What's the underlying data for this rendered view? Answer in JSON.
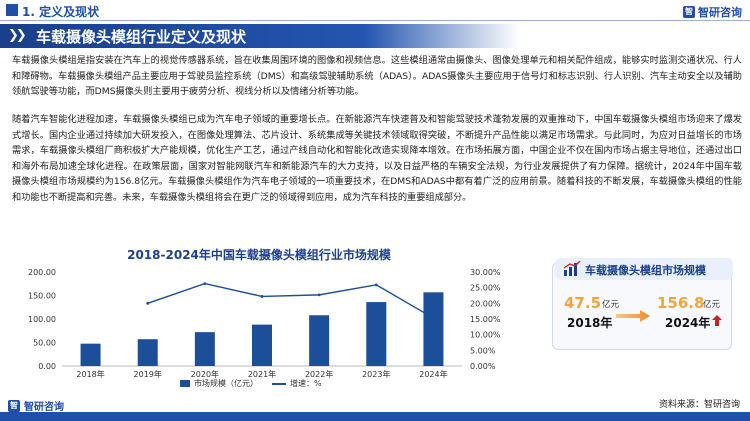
{
  "header": {
    "section": "1. 定义及现状",
    "brand": "智研咨询"
  },
  "banner": {
    "title": "车载摄像头模组行业定义及现状"
  },
  "paragraphs": [
    "车载摄像头模组是指安装在汽车上的视觉传感器系统，旨在收集周围环境的图像和视频信息。这些模组通常由摄像头、图像处理单元和相关配件组成，能够实时监测交通状况、行人和障碍物。车载摄像头模组产品主要应用于驾驶员监控系统（DMS）和高级驾驶辅助系统（ADAS）。ADAS摄像头主要应用于信号灯和标志识别、行人识别、汽车主动安全以及辅助领航驾驶等功能，而DMS摄像头则主要用于疲劳分析、视线分析以及情绪分析等功能。",
    "随着汽车智能化进程加速，车载摄像头模组已成为汽车电子领域的重要增长点。在新能源汽车快速普及和智能驾驶技术蓬勃发展的双重推动下，中国车载摄像头模组市场迎来了爆发式增长。国内企业通过持续加大研发投入，在图像处理算法、芯片设计、系统集成等关键技术领域取得突破，不断提升产品性能以满足市场需求。与此同时，为应对日益增长的市场需求，车载摄像头模组厂商积极扩大产能规模，优化生产工艺，通过产线自动化和智能化改造实现降本增效。在市场拓展方面，中国企业不仅在国内市场占据主导地位，还通过出口和海外布局加速全球化进程。在政策层面，国家对智能网联汽车和新能源汽车的大力支持，以及日益严格的车辆安全法规，为行业发展提供了有力保障。据统计，2024年中国车载摄像头模组市场规模约为156.8亿元。车载摄像头模组作为汽车电子领域的一项重要技术，在DMS和ADAS中都有着广泛的应用前景。随着科技的不断发展，车载摄像头模组的性能和功能也不断提高和完善。未来，车载摄像头模组将会在更广泛的领域得到应用，成为汽车科技的重要组成部分。"
  ],
  "chart_data": {
    "type": "bar",
    "title": "2018-2024年中国车载摄像头模组行业市场规模",
    "categories": [
      "2018年",
      "2019年",
      "2020年",
      "2021年",
      "2022年",
      "2023年",
      "2024年"
    ],
    "series": [
      {
        "name": "市场规模（亿元）",
        "type": "bar",
        "axis": "left",
        "values": [
          47.5,
          57.0,
          72.0,
          88.0,
          108.0,
          136.0,
          156.8
        ]
      },
      {
        "name": "增速：%",
        "type": "line",
        "axis": "right",
        "values": [
          null,
          20.0,
          26.3,
          22.2,
          22.7,
          25.9,
          15.3
        ]
      }
    ],
    "ylim_left": [
      0,
      200
    ],
    "yticks_left": [
      "0.00",
      "50.00",
      "100.00",
      "150.00",
      "200.00"
    ],
    "ylim_right": [
      0,
      30
    ],
    "yticks_right": [
      "0.00%",
      "5.00%",
      "10.00%",
      "15.00%",
      "20.00%",
      "25.00%",
      "30.00%"
    ],
    "legend_position": "bottom",
    "colors": {
      "bar": "#1d4e9a",
      "line": "#1d4e9a"
    }
  },
  "summary_card": {
    "title": "车载摄像头模组市场规模",
    "start_value": "47.5",
    "start_unit": "亿元",
    "start_year": "2018年",
    "end_value": "156.8",
    "end_unit": "亿元",
    "end_year": "2024年",
    "accent": "#f3a53a",
    "arrow_color": "#cc1f1f"
  },
  "footer": {
    "source": "资料来源：智研咨询",
    "logo": "智研咨询"
  }
}
